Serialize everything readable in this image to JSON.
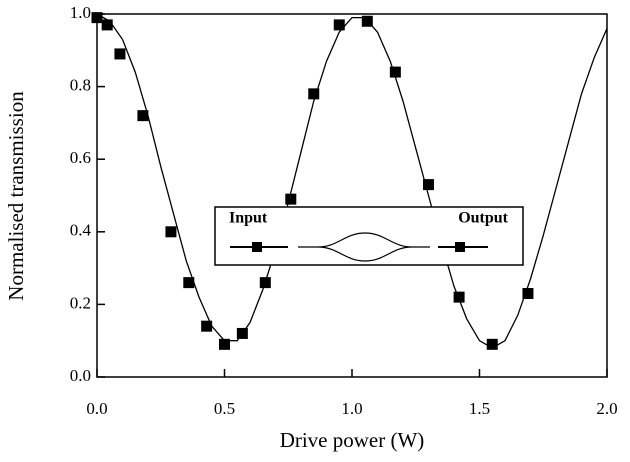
{
  "chart_data": {
    "type": "scatter",
    "xlabel": "Drive power (W)",
    "ylabel": "Normalised transmission",
    "xlim": [
      0,
      2.0
    ],
    "ylim": [
      0,
      1.0
    ],
    "xticks": [
      {
        "value": 0,
        "label": "0.0"
      },
      0.5,
      {
        "value": 1,
        "label": "1.0"
      },
      1.5,
      {
        "value": 2,
        "label": "2.0"
      }
    ],
    "yticks": [
      {
        "value": 0,
        "label": "0.0"
      },
      0.2,
      0.4,
      0.6,
      0.8,
      {
        "value": 1,
        "label": "1.0"
      }
    ],
    "annotations": [
      "Input",
      "Output"
    ],
    "series": [
      {
        "style": "markers",
        "color": "#000000",
        "x": [
          0.0,
          0.04,
          0.09,
          0.18,
          0.29,
          0.36,
          0.43,
          0.5,
          0.57,
          0.66,
          0.76,
          0.85,
          0.95,
          1.06,
          1.17,
          1.3,
          1.42,
          1.55,
          1.69
        ],
        "values": [
          0.99,
          0.97,
          0.89,
          0.72,
          0.4,
          0.26,
          0.14,
          0.09,
          0.12,
          0.26,
          0.49,
          0.78,
          0.97,
          0.98,
          0.84,
          0.53,
          0.22,
          0.09,
          0.23
        ]
      },
      {
        "style": "line",
        "color": "#000000",
        "x": [
          0,
          0.05,
          0.1,
          0.15,
          0.2,
          0.25,
          0.3,
          0.35,
          0.4,
          0.45,
          0.5,
          0.55,
          0.6,
          0.65,
          0.7,
          0.75,
          0.8,
          0.85,
          0.9,
          0.95,
          1.0,
          1.05,
          1.1,
          1.15,
          1.2,
          1.25,
          1.3,
          1.35,
          1.4,
          1.45,
          1.5,
          1.55,
          1.6,
          1.65,
          1.7,
          1.75,
          1.8,
          1.85,
          1.9,
          1.95,
          2.0
        ],
        "values": [
          1.0,
          0.98,
          0.93,
          0.84,
          0.72,
          0.58,
          0.45,
          0.32,
          0.22,
          0.14,
          0.1,
          0.1,
          0.15,
          0.24,
          0.35,
          0.48,
          0.62,
          0.76,
          0.87,
          0.95,
          0.99,
          0.99,
          0.95,
          0.87,
          0.76,
          0.63,
          0.5,
          0.37,
          0.25,
          0.16,
          0.1,
          0.08,
          0.1,
          0.17,
          0.27,
          0.39,
          0.52,
          0.65,
          0.78,
          0.88,
          0.96
        ]
      }
    ]
  }
}
